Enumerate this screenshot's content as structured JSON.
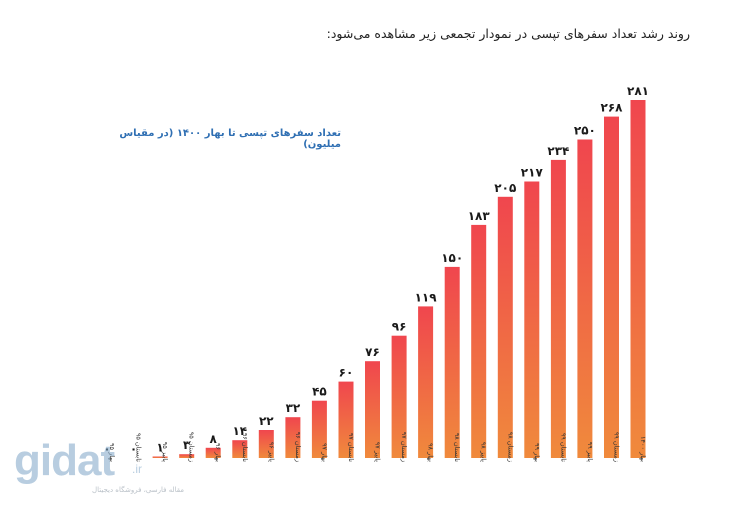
{
  "header": {
    "intro": "روند رشد تعداد سفرهای تپسی در نمودار تجمعی زیر مشاهده می‌شود:"
  },
  "watermark": {
    "logo": "gidat",
    "tld": ".ir",
    "tagline": "مقاله فارسی، فروشگاه دیجیتال"
  },
  "colors": {
    "bar_top": "#f0464e",
    "bar_bottom": "#f08a3c",
    "title": "#2f6fb3",
    "value_label": "#1a1a1a"
  },
  "chart_data": {
    "type": "bar",
    "title": "تعداد سفرهای تپسی تا بهار ۱۴۰۰ (در مقیاس میلیون)",
    "xlabel": "",
    "ylabel": "",
    "grid": false,
    "legend": "none",
    "ylim": [
      0,
      281
    ],
    "categories": [
      "بهار ۹۵",
      "تابستان ۹۵",
      "پاییز ۹۵",
      "زمستان ۹۵",
      "بهار ۹۶",
      "تابستان ۹۶",
      "پاییز ۹۶",
      "زمستان ۹۶",
      "بهار ۹۷",
      "تابستان ۹۷",
      "پاییز ۹۷",
      "زمستان ۹۷",
      "بهار ۹۸",
      "تابستان ۹۸",
      "پاییز ۹۸",
      "زمستان ۹۸",
      "بهار ۹۹",
      "تابستان ۹۹",
      "پاییز ۹۹",
      "زمستان ۹۹",
      "بهار ۱۴۰۰"
    ],
    "values": [
      0,
      0,
      1,
      3,
      8,
      14,
      22,
      32,
      45,
      60,
      76,
      96,
      119,
      150,
      183,
      205,
      217,
      234,
      250,
      268,
      281
    ],
    "value_labels": [
      "۰",
      "۰",
      "۱",
      "۳",
      "۸",
      "۱۴",
      "۲۲",
      "۳۲",
      "۴۵",
      "۶۰",
      "۷۶",
      "۹۶",
      "۱۱۹",
      "۱۵۰",
      "۱۸۳",
      "۲۰۵",
      "۲۱۷",
      "۲۳۴",
      "۲۵۰",
      "۲۶۸",
      "۲۸۱"
    ]
  }
}
